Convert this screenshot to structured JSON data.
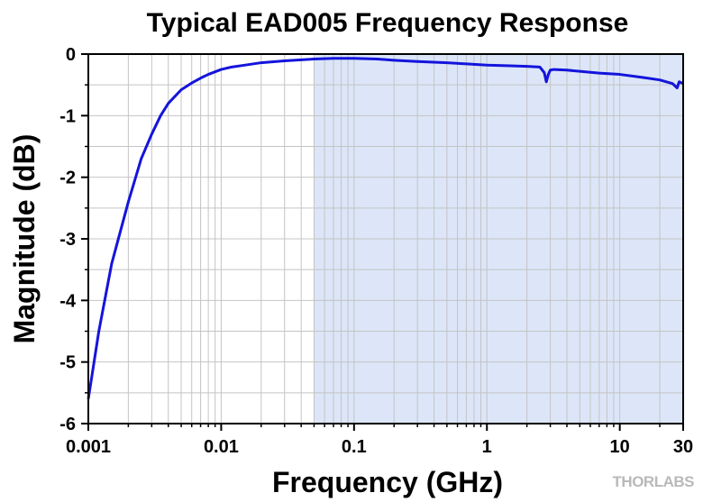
{
  "chart_data": {
    "type": "line",
    "title": "Typical EAD005 Frequency Response",
    "xlabel": "Frequency (GHz)",
    "ylabel": "Magnitude (dB)",
    "x_scale": "log",
    "xlim": [
      0.001,
      30
    ],
    "ylim": [
      -6,
      0
    ],
    "x_ticks": [
      0.001,
      0.01,
      0.1,
      1,
      10,
      30
    ],
    "x_tick_labels": [
      "0.001",
      "0.01",
      "0.1",
      "1",
      "10",
      "30"
    ],
    "y_ticks": [
      0,
      -1,
      -2,
      -3,
      -4,
      -5,
      -6
    ],
    "y_tick_labels": [
      "0",
      "-1",
      "-2",
      "-3",
      "-4",
      "-5",
      "-6"
    ],
    "grid": true,
    "shaded_region": {
      "x_start": 0.05,
      "x_end": 30,
      "color": "#dce6f8"
    },
    "series": [
      {
        "color": "#1414dc",
        "x": [
          0.001,
          0.0012,
          0.0015,
          0.002,
          0.0025,
          0.003,
          0.0035,
          0.004,
          0.005,
          0.006,
          0.007,
          0.008,
          0.01,
          0.012,
          0.015,
          0.02,
          0.03,
          0.05,
          0.07,
          0.1,
          0.15,
          0.2,
          0.3,
          0.5,
          0.7,
          1,
          1.5,
          2,
          2.5,
          2.7,
          2.8,
          2.9,
          3.0,
          3.2,
          4,
          5,
          7,
          10,
          15,
          20,
          25,
          27,
          28,
          30
        ],
        "y": [
          -5.6,
          -4.5,
          -3.4,
          -2.4,
          -1.7,
          -1.3,
          -1.0,
          -0.8,
          -0.58,
          -0.47,
          -0.39,
          -0.33,
          -0.25,
          -0.21,
          -0.18,
          -0.14,
          -0.11,
          -0.08,
          -0.07,
          -0.07,
          -0.08,
          -0.1,
          -0.12,
          -0.14,
          -0.16,
          -0.18,
          -0.19,
          -0.2,
          -0.21,
          -0.3,
          -0.45,
          -0.33,
          -0.26,
          -0.25,
          -0.26,
          -0.28,
          -0.31,
          -0.33,
          -0.38,
          -0.42,
          -0.48,
          -0.55,
          -0.45,
          -0.48
        ]
      }
    ]
  },
  "logo": {
    "text": "THORLABS"
  }
}
